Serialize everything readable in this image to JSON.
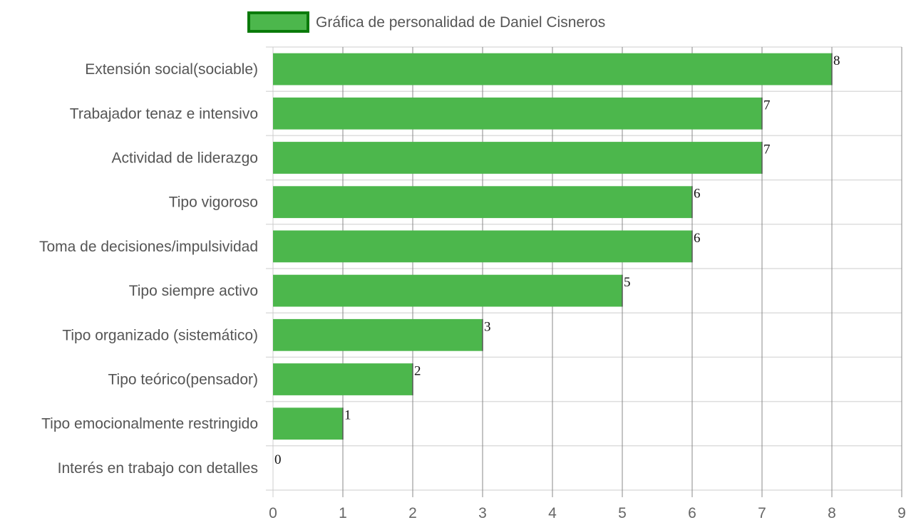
{
  "chart_data": {
    "type": "bar",
    "orientation": "horizontal",
    "categories": [
      "Extensión social(sociable)",
      "Trabajador tenaz e intensivo",
      "Actividad de liderazgo",
      "Tipo vigoroso",
      "Toma de decisiones/impulsividad",
      "Tipo siempre activo",
      "Tipo organizado (sistemático)",
      "Tipo teórico(pensador)",
      "Tipo emocionalmente restringido",
      "Interés en trabajo con detalles"
    ],
    "series": [
      {
        "name": "Gráfica de personalidad de Daniel Cisneros",
        "values": [
          8,
          7,
          7,
          6,
          6,
          5,
          3,
          2,
          1,
          0
        ]
      }
    ],
    "xlim": [
      0,
      9
    ],
    "xticks": [
      "0",
      "1",
      "2",
      "3",
      "4",
      "5",
      "6",
      "7",
      "8",
      "9"
    ],
    "grid": true,
    "legend_position": "top",
    "data_labels": true,
    "colors": {
      "bar_fill": "#4cb74c",
      "legend_border": "#0a7a0a",
      "grid": "#dddddd",
      "vertical_grid": "#888888"
    }
  }
}
